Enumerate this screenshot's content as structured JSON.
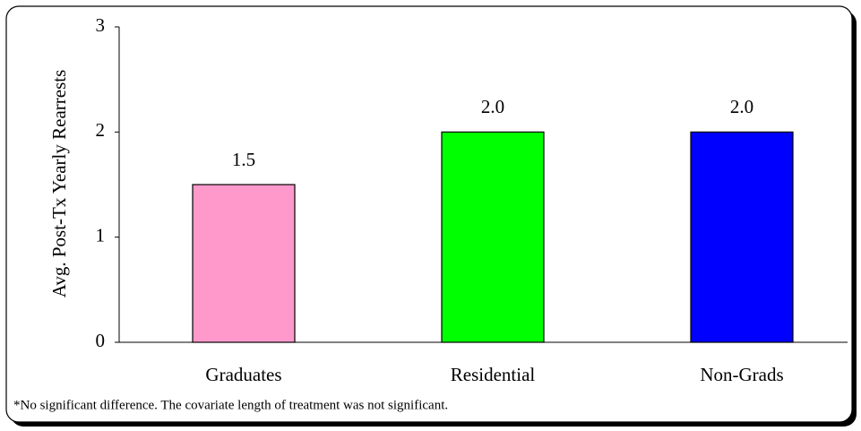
{
  "chart_data": {
    "type": "bar",
    "y_axis_label": "Avg. Post-Tx Yearly Rearrests",
    "categories": [
      "Graduates",
      "Residential",
      "Non-Grads"
    ],
    "values": [
      1.5,
      2,
      2
    ],
    "value_labels": [
      "1.5",
      "2.0",
      "2.0"
    ],
    "colors": [
      "#ff99cc",
      "#00ff00",
      "#0000ff"
    ],
    "ylim": [
      0,
      3
    ],
    "yticks": [
      0,
      1,
      2,
      3
    ],
    "annotation": "*No significant difference. The covariate length of treatment was not significant."
  }
}
